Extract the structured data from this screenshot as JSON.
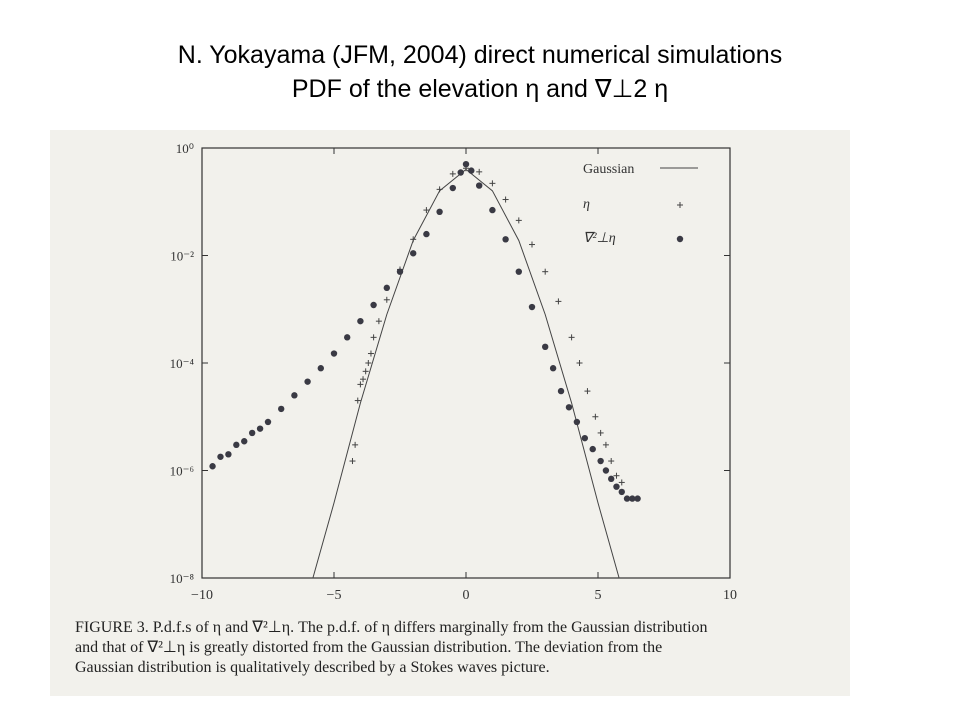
{
  "slide": {
    "title_line1": "N. Yokayama  (JFM, 2004) direct numerical simulations",
    "title_line2": "PDF of the elevation  η  and  ∇⊥2  η"
  },
  "caption": {
    "line1": "FIGURE 3. P.d.f.s of η and ∇²⊥η. The p.d.f. of η differs marginally from the Gaussian distribution",
    "line2": "and that of ∇²⊥η is greatly distorted from the Gaussian distribution. The deviation from the",
    "line3": "Gaussian distribution is qualitatively described by a Stokes waves picture."
  },
  "chart_data": {
    "type": "scatter",
    "title": "",
    "xlabel": "",
    "ylabel": "",
    "xlim": [
      -10,
      10
    ],
    "ylim": [
      1e-08,
      1
    ],
    "yscale": "log",
    "x_ticks": [
      "−10",
      "−5",
      "0",
      "5",
      "10"
    ],
    "y_ticks": [
      "10⁰",
      "10⁻²",
      "10⁻⁴",
      "10⁻⁶",
      "10⁻⁸"
    ],
    "legend_position": "top-right",
    "series": [
      {
        "name": "Gaussian",
        "style": "line",
        "x": [
          -5.8,
          -5.0,
          -4.0,
          -3.0,
          -2.0,
          -1.0,
          0.0,
          1.0,
          2.0,
          3.0,
          4.0,
          5.0,
          5.8
        ],
        "y": [
          1e-08,
          2.5e-07,
          1.8e-05,
          0.0008,
          0.019,
          0.16,
          0.4,
          0.16,
          0.019,
          0.0008,
          1.8e-05,
          2.5e-07,
          1e-08
        ]
      },
      {
        "name": "η",
        "style": "plus",
        "x": [
          -4.3,
          -4.2,
          -4.1,
          -4.0,
          -3.9,
          -3.8,
          -3.7,
          -3.6,
          -3.5,
          -3.3,
          -3.0,
          -2.5,
          -2.0,
          -1.5,
          -1.0,
          -0.5,
          0.0,
          0.5,
          1.0,
          1.5,
          2.0,
          2.5,
          3.0,
          3.5,
          4.0,
          4.3,
          4.6,
          4.9,
          5.1,
          5.3,
          5.5,
          5.7,
          5.9
        ],
        "y": [
          1.5e-06,
          3e-06,
          2e-05,
          4e-05,
          5e-05,
          7e-05,
          0.0001,
          0.00015,
          0.0003,
          0.0006,
          0.0015,
          0.0055,
          0.02,
          0.07,
          0.17,
          0.33,
          0.42,
          0.36,
          0.22,
          0.11,
          0.045,
          0.016,
          0.005,
          0.0014,
          0.0003,
          0.0001,
          3e-05,
          1e-05,
          5e-06,
          3e-06,
          1.5e-06,
          8e-07,
          6e-07
        ]
      },
      {
        "name": "∇²⊥η",
        "style": "dot",
        "x": [
          -9.6,
          -9.3,
          -9.0,
          -8.7,
          -8.4,
          -8.1,
          -7.8,
          -7.5,
          -7.0,
          -6.5,
          -6.0,
          -5.5,
          -5.0,
          -4.5,
          -4.0,
          -3.5,
          -3.0,
          -2.5,
          -2.0,
          -1.5,
          -1.0,
          -0.5,
          -0.2,
          0.0,
          0.2,
          0.5,
          1.0,
          1.5,
          2.0,
          2.5,
          3.0,
          3.3,
          3.6,
          3.9,
          4.2,
          4.5,
          4.8,
          5.1,
          5.3,
          5.5,
          5.7,
          5.9,
          6.1,
          6.3,
          6.5
        ],
        "y": [
          1.2e-06,
          1.8e-06,
          2e-06,
          3e-06,
          3.5e-06,
          5e-06,
          6e-06,
          8e-06,
          1.4e-05,
          2.5e-05,
          4.5e-05,
          8e-05,
          0.00015,
          0.0003,
          0.0006,
          0.0012,
          0.0025,
          0.005,
          0.011,
          0.025,
          0.065,
          0.18,
          0.35,
          0.5,
          0.38,
          0.2,
          0.07,
          0.02,
          0.005,
          0.0011,
          0.0002,
          8e-05,
          3e-05,
          1.5e-05,
          8e-06,
          4e-06,
          2.5e-06,
          1.5e-06,
          1e-06,
          7e-07,
          5e-07,
          4e-07,
          3e-07,
          3e-07,
          3e-07
        ]
      }
    ]
  }
}
